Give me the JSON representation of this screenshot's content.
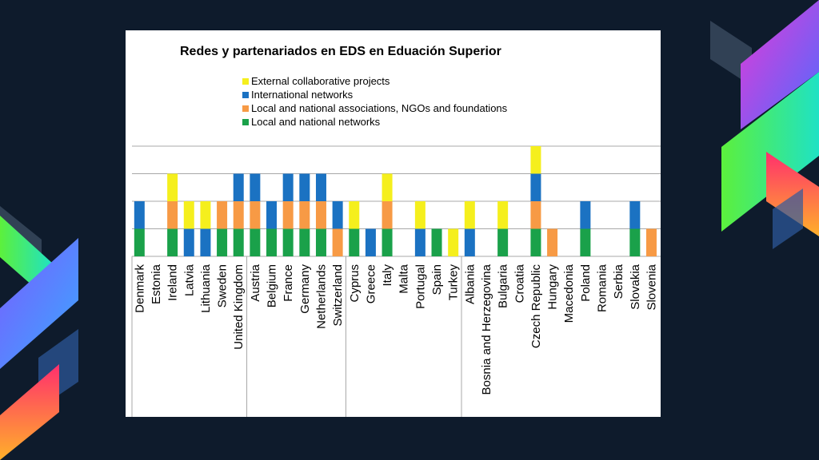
{
  "colors": {
    "background": "#0e1b2c",
    "Local and national networks": "#1aa14a",
    "Local and national associations, NGOs and foundations": "#f79a45",
    "International networks": "#1b72c2",
    "External collaborative projects": "#f5ef1d"
  },
  "chart_data": {
    "type": "bar",
    "stacked": true,
    "title": "Redes y partenariados en EDS en Eduación Superior",
    "xlabel": "",
    "ylabel": "",
    "ylim": [
      0,
      4
    ],
    "grid": true,
    "legend_position": "top",
    "legend": [
      "External collaborative projects",
      "International networks",
      "Local and national associations, NGOs and foundations",
      "Local and national networks"
    ],
    "categories": [
      "Denmark",
      "Estonia",
      "Ireland",
      "Latvia",
      "Lithuania",
      "Sweden",
      "United Kingdom",
      "Austria",
      "Belgium",
      "France",
      "Germany",
      "Netherlands",
      "Switzerland",
      "Cyprus",
      "Greece",
      "Italy",
      "Malta",
      "Portugal",
      "Spain",
      "Turkey",
      "Albania",
      "Bosnia and Herzegovina",
      "Bulgaria",
      "Croatia",
      "Czech Republic",
      "Hungary",
      "Macedonia",
      "Poland",
      "Romania",
      "Serbia",
      "Slovakia",
      "Slovenia"
    ],
    "series": [
      {
        "name": "Local and national networks",
        "values": [
          1,
          0,
          1,
          0,
          0,
          1,
          1,
          1,
          1,
          1,
          1,
          1,
          0,
          1,
          0,
          1,
          0,
          0,
          1,
          0,
          0,
          0,
          1,
          0,
          1,
          0,
          0,
          1,
          0,
          0,
          1,
          0
        ]
      },
      {
        "name": "Local and national associations, NGOs and foundations",
        "values": [
          0,
          0,
          1,
          0,
          0,
          1,
          1,
          1,
          0,
          1,
          1,
          1,
          1,
          0,
          0,
          1,
          0,
          0,
          0,
          0,
          0,
          0,
          0,
          0,
          1,
          1,
          0,
          0,
          0,
          0,
          0,
          1
        ]
      },
      {
        "name": "International networks",
        "values": [
          1,
          0,
          0,
          1,
          1,
          0,
          1,
          1,
          1,
          1,
          1,
          1,
          1,
          0,
          1,
          0,
          0,
          1,
          0,
          0,
          1,
          0,
          0,
          0,
          1,
          0,
          0,
          1,
          0,
          0,
          1,
          0
        ]
      },
      {
        "name": "External collaborative projects",
        "values": [
          0,
          0,
          1,
          1,
          1,
          0,
          0,
          0,
          0,
          0,
          0,
          0,
          0,
          1,
          0,
          1,
          0,
          1,
          0,
          1,
          1,
          0,
          1,
          0,
          1,
          0,
          0,
          0,
          0,
          0,
          0,
          0
        ]
      }
    ],
    "groups": [
      [
        "Denmark",
        "Estonia",
        "Ireland",
        "Latvia",
        "Lithuania",
        "Sweden",
        "United Kingdom"
      ],
      [
        "Austria",
        "Belgium",
        "France",
        "Germany",
        "Netherlands",
        "Switzerland"
      ],
      [
        "Cyprus",
        "Greece",
        "Italy",
        "Malta",
        "Portugal",
        "Spain",
        "Turkey"
      ],
      [
        "Albania",
        "Bosnia and Herzegovina",
        "Bulgaria",
        "Croatia",
        "Czech Republic",
        "Hungary",
        "Macedonia",
        "Poland",
        "Romania",
        "Serbia",
        "Slovakia",
        "Slovenia"
      ]
    ]
  }
}
